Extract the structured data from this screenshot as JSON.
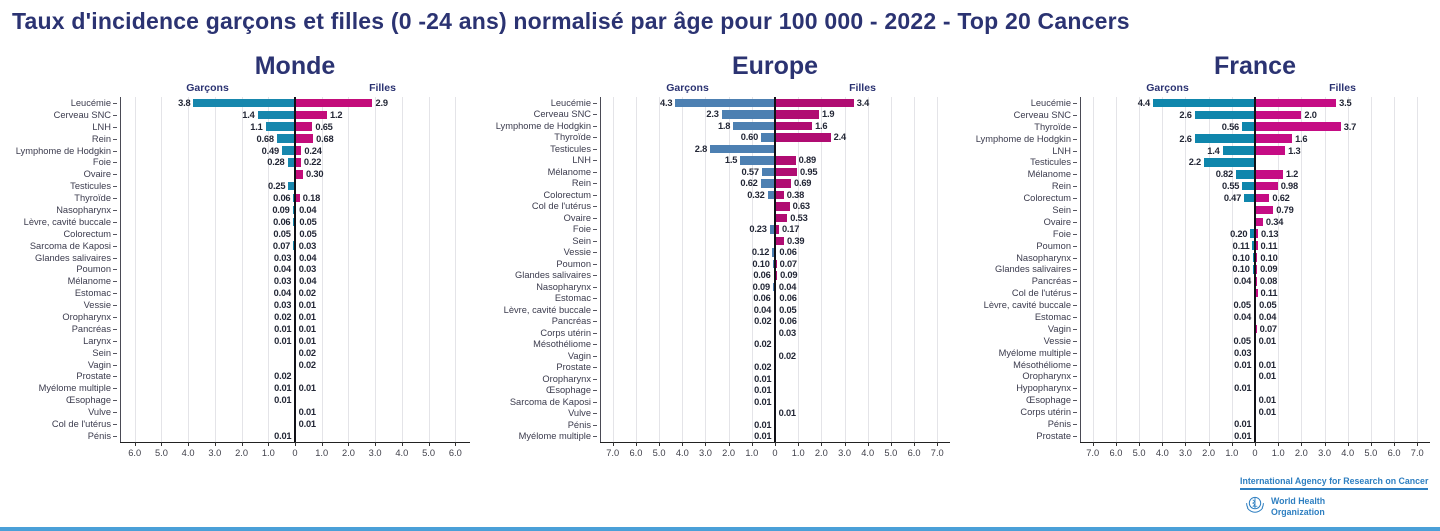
{
  "page": {
    "title": "Taux d'incidence garçons et filles (0 -24 ans) normalisé par âge pour 100 000 - 2022 - Top 20 Cancers",
    "title_color": "#2b3372"
  },
  "footer": {
    "iarc_text": "International Agency for Research on Cancer",
    "who_text_line1": "World Health",
    "who_text_line2": "Organization",
    "logo_color": "#2e7fc1"
  },
  "chart_data": [
    {
      "type": "bar",
      "orientation": "horizontal-diverging",
      "title": "Monde",
      "left_header": "Garçons",
      "right_header": "Filles",
      "axis_max": 6.0,
      "tick_labels": [
        "6.0",
        "5.0",
        "4.0",
        "3.0",
        "2.0",
        "1.0",
        "0",
        "1.0",
        "2.0",
        "3.0",
        "4.0",
        "5.0",
        "6.0"
      ],
      "colors": {
        "boys": "#1787ad",
        "girls": "#c30c7a"
      },
      "rows": [
        {
          "label": "Leucémie",
          "garcons": "3.8",
          "filles": "2.9"
        },
        {
          "label": "Cerveau SNC",
          "garcons": "1.4",
          "filles": "1.2"
        },
        {
          "label": "LNH",
          "garcons": "1.1",
          "filles": "0.65"
        },
        {
          "label": "Rein",
          "garcons": "0.68",
          "filles": "0.68"
        },
        {
          "label": "Lymphome de Hodgkin",
          "garcons": "0.49",
          "filles": "0.24"
        },
        {
          "label": "Foie",
          "garcons": "0.28",
          "filles": "0.22"
        },
        {
          "label": "Ovaire",
          "garcons": null,
          "filles": "0.30"
        },
        {
          "label": "Testicules",
          "garcons": "0.25",
          "filles": null
        },
        {
          "label": "Thyroïde",
          "garcons": "0.06",
          "filles": "0.18"
        },
        {
          "label": "Nasopharynx",
          "garcons": "0.09",
          "filles": "0.04"
        },
        {
          "label": "Lèvre, cavité buccale",
          "garcons": "0.06",
          "filles": "0.05"
        },
        {
          "label": "Colorectum",
          "garcons": "0.05",
          "filles": "0.05"
        },
        {
          "label": "Sarcoma de Kaposi",
          "garcons": "0.07",
          "filles": "0.03"
        },
        {
          "label": "Glandes salivaires",
          "garcons": "0.03",
          "filles": "0.04"
        },
        {
          "label": "Poumon",
          "garcons": "0.04",
          "filles": "0.03"
        },
        {
          "label": "Mélanome",
          "garcons": "0.03",
          "filles": "0.04"
        },
        {
          "label": "Estomac",
          "garcons": "0.04",
          "filles": "0.02"
        },
        {
          "label": "Vessie",
          "garcons": "0.03",
          "filles": "0.01"
        },
        {
          "label": "Oropharynx",
          "garcons": "0.02",
          "filles": "0.01"
        },
        {
          "label": "Pancréas",
          "garcons": "0.01",
          "filles": "0.01"
        },
        {
          "label": "Larynx",
          "garcons": "0.01",
          "filles": "0.01"
        },
        {
          "label": "Sein",
          "garcons": null,
          "filles": "0.02"
        },
        {
          "label": "Vagin",
          "garcons": null,
          "filles": "0.02"
        },
        {
          "label": "Prostate",
          "garcons": "0.02",
          "filles": null
        },
        {
          "label": "Myélome multiple",
          "garcons": "0.01",
          "filles": "0.01"
        },
        {
          "label": "Œsophage",
          "garcons": "0.01",
          "filles": null
        },
        {
          "label": "Vulve",
          "garcons": null,
          "filles": "0.01"
        },
        {
          "label": "Col de l'utérus",
          "garcons": null,
          "filles": "0.01"
        },
        {
          "label": "Pénis",
          "garcons": "0.01",
          "filles": null
        }
      ]
    },
    {
      "type": "bar",
      "orientation": "horizontal-diverging",
      "title": "Europe",
      "left_header": "Garçons",
      "right_header": "Filles",
      "axis_max": 7.0,
      "tick_labels": [
        "7.0",
        "6.0",
        "5.0",
        "4.0",
        "3.0",
        "2.0",
        "1.0",
        "0",
        "1.0",
        "2.0",
        "3.0",
        "4.0",
        "5.0",
        "6.0",
        "7.0"
      ],
      "colors": {
        "boys": "#4d80b2",
        "girls": "#b00c72"
      },
      "rows": [
        {
          "label": "Leucémie",
          "garcons": "4.3",
          "filles": "3.4"
        },
        {
          "label": "Cerveau SNC",
          "garcons": "2.3",
          "filles": "1.9"
        },
        {
          "label": "Lymphome de Hodgkin",
          "garcons": "1.8",
          "filles": "1.6"
        },
        {
          "label": "Thyroïde",
          "garcons": "0.60",
          "filles": "2.4"
        },
        {
          "label": "Testicules",
          "garcons": "2.8",
          "filles": null
        },
        {
          "label": "LNH",
          "garcons": "1.5",
          "filles": "0.89"
        },
        {
          "label": "Mélanome",
          "garcons": "0.57",
          "filles": "0.95"
        },
        {
          "label": "Rein",
          "garcons": "0.62",
          "filles": "0.69"
        },
        {
          "label": "Colorectum",
          "garcons": "0.32",
          "filles": "0.38"
        },
        {
          "label": "Col de l'utérus",
          "garcons": null,
          "filles": "0.63"
        },
        {
          "label": "Ovaire",
          "garcons": null,
          "filles": "0.53"
        },
        {
          "label": "Foie",
          "garcons": "0.23",
          "filles": "0.17"
        },
        {
          "label": "Sein",
          "garcons": null,
          "filles": "0.39"
        },
        {
          "label": "Vessie",
          "garcons": "0.12",
          "filles": "0.06"
        },
        {
          "label": "Poumon",
          "garcons": "0.10",
          "filles": "0.07"
        },
        {
          "label": "Glandes salivaires",
          "garcons": "0.06",
          "filles": "0.09"
        },
        {
          "label": "Nasopharynx",
          "garcons": "0.09",
          "filles": "0.04"
        },
        {
          "label": "Estomac",
          "garcons": "0.06",
          "filles": "0.06"
        },
        {
          "label": "Lèvre, cavité buccale",
          "garcons": "0.04",
          "filles": "0.05"
        },
        {
          "label": "Pancréas",
          "garcons": "0.02",
          "filles": "0.06"
        },
        {
          "label": "Corps utérin",
          "garcons": null,
          "filles": "0.03"
        },
        {
          "label": "Mésothéliome",
          "garcons": "0.02",
          "filles": null
        },
        {
          "label": "Vagin",
          "garcons": null,
          "filles": "0.02"
        },
        {
          "label": "Prostate",
          "garcons": "0.02",
          "filles": null
        },
        {
          "label": "Oropharynx",
          "garcons": "0.01",
          "filles": null
        },
        {
          "label": "Œsophage",
          "garcons": "0.01",
          "filles": null
        },
        {
          "label": "Sarcoma de Kaposi",
          "garcons": "0.01",
          "filles": null
        },
        {
          "label": "Vulve",
          "garcons": null,
          "filles": "0.01"
        },
        {
          "label": "Pénis",
          "garcons": "0.01",
          "filles": null
        },
        {
          "label": "Myélome multiple",
          "garcons": "0.01",
          "filles": null
        }
      ]
    },
    {
      "type": "bar",
      "orientation": "horizontal-diverging",
      "title": "France",
      "left_header": "Garçons",
      "right_header": "Filles",
      "axis_max": 7.0,
      "tick_labels": [
        "7.0",
        "6.0",
        "5.0",
        "4.0",
        "3.0",
        "2.0",
        "1.0",
        "0",
        "1.0",
        "2.0",
        "3.0",
        "4.0",
        "5.0",
        "6.0",
        "7.0"
      ],
      "colors": {
        "boys": "#0f86ac",
        "girls": "#c50c84"
      },
      "rows": [
        {
          "label": "Leucémie",
          "garcons": "4.4",
          "filles": "3.5"
        },
        {
          "label": "Cerveau SNC",
          "garcons": "2.6",
          "filles": "2.0"
        },
        {
          "label": "Thyroïde",
          "garcons": "0.56",
          "filles": "3.7"
        },
        {
          "label": "Lymphome de Hodgkin",
          "garcons": "2.6",
          "filles": "1.6"
        },
        {
          "label": "LNH",
          "garcons": "1.4",
          "filles": "1.3"
        },
        {
          "label": "Testicules",
          "garcons": "2.2",
          "filles": null
        },
        {
          "label": "Mélanome",
          "garcons": "0.82",
          "filles": "1.2"
        },
        {
          "label": "Rein",
          "garcons": "0.55",
          "filles": "0.98"
        },
        {
          "label": "Colorectum",
          "garcons": "0.47",
          "filles": "0.62"
        },
        {
          "label": "Sein",
          "garcons": null,
          "filles": "0.79"
        },
        {
          "label": "Ovaire",
          "garcons": null,
          "filles": "0.34"
        },
        {
          "label": "Foie",
          "garcons": "0.20",
          "filles": "0.13"
        },
        {
          "label": "Poumon",
          "garcons": "0.11",
          "filles": "0.11"
        },
        {
          "label": "Nasopharynx",
          "garcons": "0.10",
          "filles": "0.10"
        },
        {
          "label": "Glandes salivaires",
          "garcons": "0.10",
          "filles": "0.09"
        },
        {
          "label": "Pancréas",
          "garcons": "0.04",
          "filles": "0.08"
        },
        {
          "label": "Col de l'utérus",
          "garcons": null,
          "filles": "0.11"
        },
        {
          "label": "Lèvre, cavité buccale",
          "garcons": "0.05",
          "filles": "0.05"
        },
        {
          "label": "Estomac",
          "garcons": "0.04",
          "filles": "0.04"
        },
        {
          "label": "Vagin",
          "garcons": null,
          "filles": "0.07"
        },
        {
          "label": "Vessie",
          "garcons": "0.05",
          "filles": "0.01"
        },
        {
          "label": "Myélome multiple",
          "garcons": "0.03",
          "filles": null
        },
        {
          "label": "Mésothéliome",
          "garcons": "0.01",
          "filles": "0.01"
        },
        {
          "label": "Oropharynx",
          "garcons": null,
          "filles": "0.01"
        },
        {
          "label": "Hypopharynx",
          "garcons": "0.01",
          "filles": null
        },
        {
          "label": "Œsophage",
          "garcons": null,
          "filles": "0.01"
        },
        {
          "label": "Corps utérin",
          "garcons": null,
          "filles": "0.01"
        },
        {
          "label": "Pénis",
          "garcons": "0.01",
          "filles": null
        },
        {
          "label": "Prostate",
          "garcons": "0.01",
          "filles": null
        }
      ]
    }
  ]
}
